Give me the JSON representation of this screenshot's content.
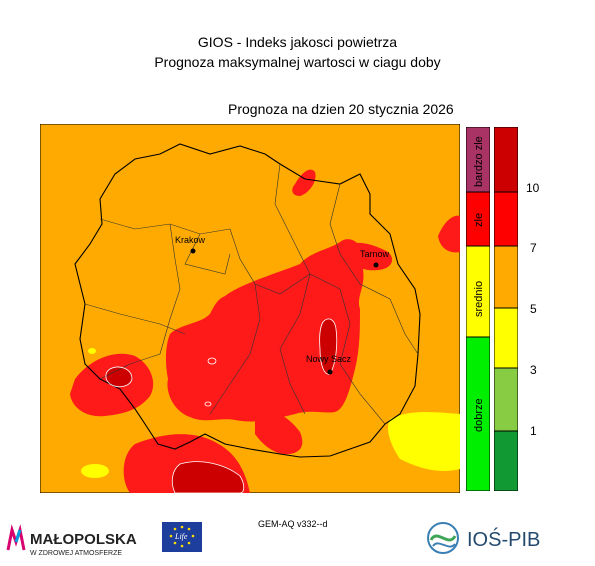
{
  "title": "GIOS - Indeks jakosci powietrza",
  "subtitle": "Prognoza maksymalnej wartosci w ciagu doby",
  "date_line": "Prognoza na dzien  20 stycznia 2026",
  "model_label": "GEM-AQ v332--d",
  "cities": [
    {
      "name": "Krakow"
    },
    {
      "name": "Tarnow"
    },
    {
      "name": "Nowy Sacz"
    }
  ],
  "legend": {
    "categories": [
      "dobrze",
      "srednio",
      "zle",
      "bardzo zle"
    ],
    "category_colors": [
      "#00ee00",
      "#ffff00",
      "#ff0000",
      "#aa3366"
    ],
    "levels": [
      "1",
      "3",
      "5",
      "7",
      "10"
    ],
    "level_colors": [
      "#119933",
      "#88cc44",
      "#ffff00",
      "#ffaa00",
      "#ff0000",
      "#cc0000"
    ]
  },
  "logos": {
    "left_name": "MAŁOPOLSKA",
    "left_tagline": "W ZDROWEJ ATMOSFERZE",
    "eu_flag_text": "Life",
    "right_name": "IOŚ-PIB"
  },
  "colors": {
    "background_orange": "#ffaa00",
    "high_red": "#ff1a1a",
    "very_high": "#cc0000",
    "moderate_yellow": "#ffff00"
  }
}
